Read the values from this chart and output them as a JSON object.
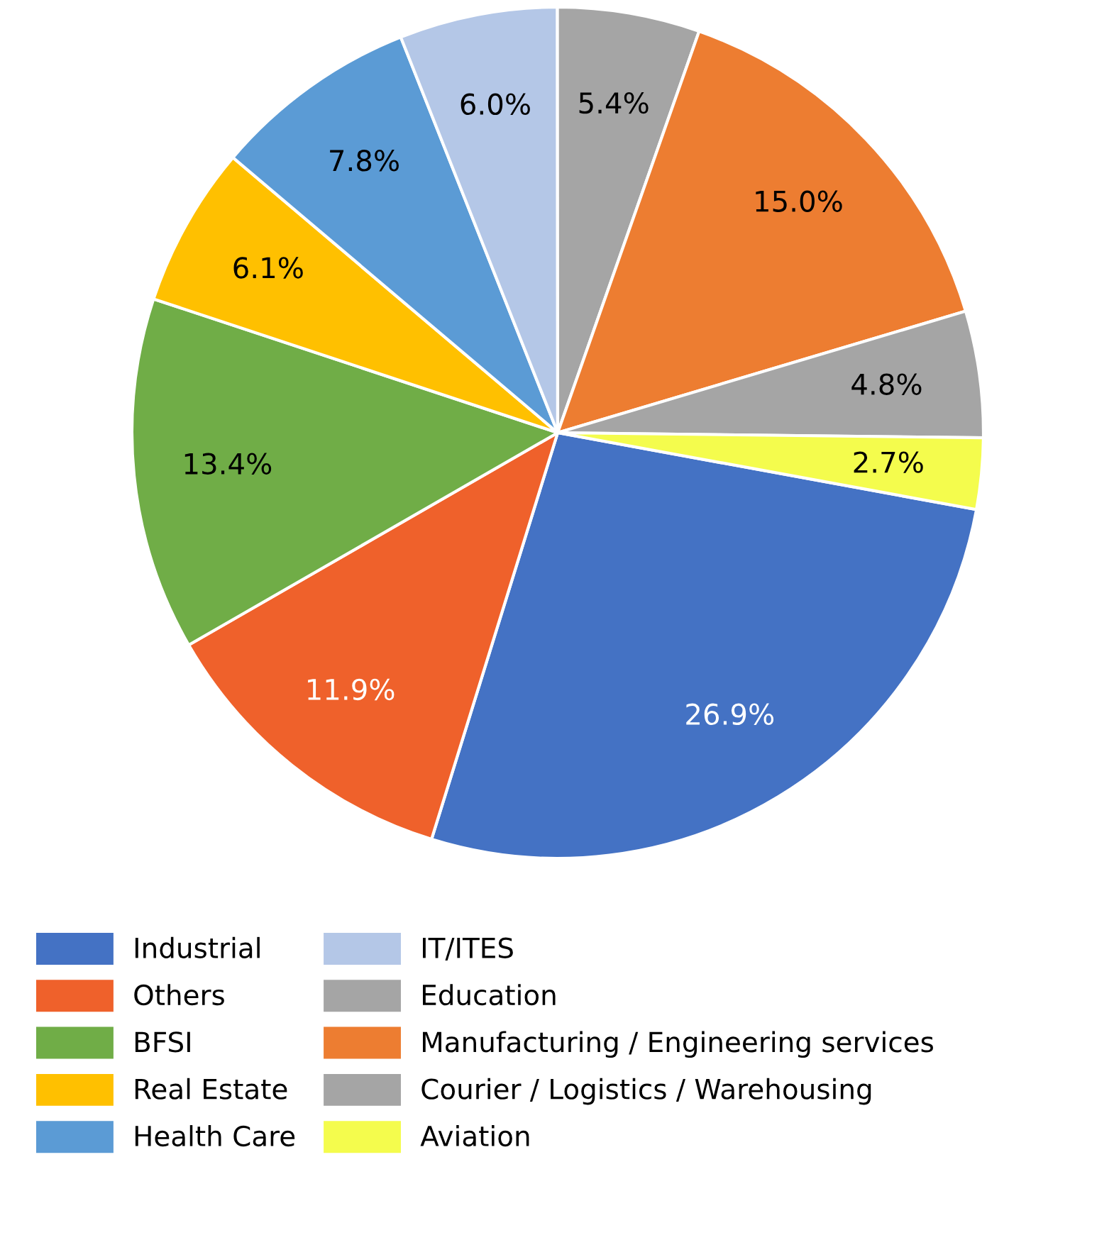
{
  "chart_data": {
    "type": "pie",
    "categories": [
      "Industrial",
      "Others",
      "BFSI",
      "Real Estate",
      "Health Care",
      "IT/ITES",
      "Education",
      "Manufacturing / Engineering services",
      "Courier / Logistics / Warehousing",
      "Aviation"
    ],
    "values": [
      26.9,
      11.9,
      13.4,
      6.1,
      7.8,
      6.0,
      5.4,
      15.0,
      4.8,
      2.7
    ],
    "colors": [
      "#4472c4",
      "#ef612b",
      "#70ad47",
      "#ffc000",
      "#5b9bd5",
      "#b4c7e7",
      "#a5a5a5",
      "#ed7d31",
      "#a5a5a5",
      "#f4fc4d"
    ],
    "value_labels": [
      "26.9%",
      "11.9%",
      "13.4%",
      "6.1%",
      "7.8%",
      "6.0%",
      "5.4%",
      "15.0%",
      "4.8%",
      "2.7%"
    ],
    "legend": "bottom"
  }
}
